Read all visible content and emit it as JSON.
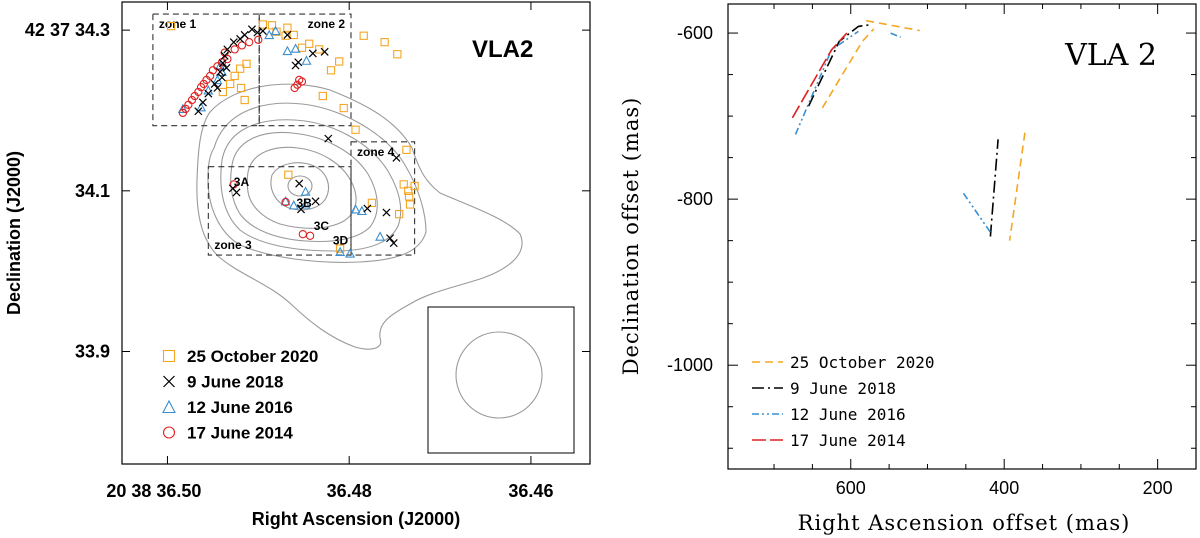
{
  "chart_data": [
    {
      "type": "scatter",
      "title": "VLA2",
      "xlabel": "Right Ascension (J2000)",
      "ylabel": "Declination (J2000)",
      "x_ticks": [
        {
          "value": 36.5,
          "label": "20 38 36.50"
        },
        {
          "value": 36.48,
          "label": "36.48"
        },
        {
          "value": 36.46,
          "label": "36.46"
        }
      ],
      "y_ticks": [
        {
          "value": 34.3,
          "label": "42 37 34.3"
        },
        {
          "value": 34.1,
          "label": "34.1"
        },
        {
          "value": 33.9,
          "label": "33.9"
        }
      ],
      "xlim": [
        36.505,
        36.4535
      ],
      "ylim": [
        33.76,
        34.335
      ],
      "zones": [
        {
          "name": "zone 1",
          "ra": [
            36.5016,
            36.4899
          ],
          "dec": [
            34.181,
            34.32
          ]
        },
        {
          "name": "zone 2",
          "ra": [
            36.4899,
            36.4798
          ],
          "dec": [
            34.181,
            34.32
          ]
        },
        {
          "name": "zone 3",
          "ra": [
            36.4955,
            36.4798
          ],
          "dec": [
            34.02,
            34.13
          ]
        },
        {
          "name": "zone 4",
          "ra": [
            36.4798,
            36.4728
          ],
          "dec": [
            34.02,
            34.161
          ]
        }
      ],
      "sources": [
        {
          "name": "3A",
          "ra": 36.4927,
          "dec": 34.106
        },
        {
          "name": "3B",
          "ra": 36.4858,
          "dec": 34.08
        },
        {
          "name": "3C",
          "ra": 36.4839,
          "dec": 34.051
        },
        {
          "name": "3D",
          "ra": 36.4818,
          "dec": 34.033
        }
      ],
      "series": [
        {
          "name": "25 October 2020",
          "marker": "square",
          "color": "#f5a623",
          "points": [
            [
              36.4996,
              34.305
            ],
            [
              36.4895,
              34.307
            ],
            [
              36.4885,
              34.306
            ],
            [
              36.4868,
              34.303
            ],
            [
              36.488,
              34.298
            ],
            [
              36.487,
              34.293
            ],
            [
              36.4861,
              34.294
            ],
            [
              36.4844,
              34.283
            ],
            [
              36.4852,
              34.278
            ],
            [
              36.4833,
              34.276
            ],
            [
              36.4811,
              34.261
            ],
            [
              36.4784,
              34.293
            ],
            [
              36.4761,
              34.285
            ],
            [
              36.4747,
              34.27
            ],
            [
              36.482,
              34.25
            ],
            [
              36.4913,
              34.258
            ],
            [
              36.492,
              34.252
            ],
            [
              36.4926,
              34.243
            ],
            [
              36.4931,
              34.233
            ],
            [
              36.4919,
              34.228
            ],
            [
              36.4939,
              34.223
            ],
            [
              36.4915,
              34.213
            ],
            [
              36.4829,
              34.218
            ],
            [
              36.4806,
              34.203
            ],
            [
              36.4793,
              34.176
            ],
            [
              36.4737,
              34.151
            ],
            [
              36.474,
              34.108
            ],
            [
              36.4735,
              34.1
            ],
            [
              36.4734,
              34.093
            ],
            [
              36.4728,
              34.106
            ],
            [
              36.4733,
              34.083
            ],
            [
              36.4775,
              34.085
            ],
            [
              36.4867,
              34.12
            ],
            [
              36.481,
              34.028
            ],
            [
              36.4745,
              34.071
            ]
          ]
        },
        {
          "name": "9 June 2018",
          "marker": "cross",
          "color": "#000000",
          "points": [
            [
              36.4895,
              34.299
            ],
            [
              36.4907,
              34.301
            ],
            [
              36.4901,
              34.297
            ],
            [
              36.4915,
              34.294
            ],
            [
              36.492,
              34.289
            ],
            [
              36.4927,
              34.285
            ],
            [
              36.4934,
              34.276
            ],
            [
              36.4937,
              34.268
            ],
            [
              36.4939,
              34.259
            ],
            [
              36.4935,
              34.253
            ],
            [
              36.4942,
              34.248
            ],
            [
              36.494,
              34.241
            ],
            [
              36.4948,
              34.233
            ],
            [
              36.4945,
              34.228
            ],
            [
              36.4955,
              34.221
            ],
            [
              36.4966,
              34.199
            ],
            [
              36.4961,
              34.21
            ],
            [
              36.4868,
              34.294
            ],
            [
              36.4856,
              34.26
            ],
            [
              36.4859,
              34.256
            ],
            [
              36.4827,
              34.273
            ],
            [
              36.484,
              34.271
            ],
            [
              36.4823,
              34.165
            ],
            [
              36.4855,
              34.109
            ],
            [
              36.4837,
              34.087
            ],
            [
              36.4853,
              34.077
            ],
            [
              36.4928,
              34.103
            ],
            [
              36.4924,
              34.098
            ],
            [
              36.4748,
              34.141
            ],
            [
              36.478,
              34.078
            ],
            [
              36.4759,
              34.073
            ],
            [
              36.4755,
              34.041
            ],
            [
              36.4751,
              34.035
            ]
          ]
        },
        {
          "name": "12 June 2016",
          "marker": "triangle",
          "color": "#3a8fd0",
          "points": [
            [
              36.4983,
              34.202
            ],
            [
              36.4963,
              34.204
            ],
            [
              36.4955,
              34.225
            ],
            [
              36.4945,
              34.238
            ],
            [
              36.494,
              34.248
            ],
            [
              36.4942,
              34.256
            ],
            [
              36.4888,
              34.294
            ],
            [
              36.4881,
              34.299
            ],
            [
              36.4859,
              34.277
            ],
            [
              36.4868,
              34.274
            ],
            [
              36.4847,
              34.262
            ],
            [
              36.487,
              34.087
            ],
            [
              36.4861,
              34.082
            ],
            [
              36.4848,
              34.083
            ],
            [
              36.4848,
              34.099
            ],
            [
              36.4793,
              34.077
            ],
            [
              36.4786,
              34.075
            ],
            [
              36.4766,
              34.043
            ],
            [
              36.481,
              34.024
            ],
            [
              36.4799,
              34.022
            ]
          ]
        },
        {
          "name": "17 June 2014",
          "marker": "circle",
          "color": "#e02020",
          "points": [
            [
              36.4934,
              34.264
            ],
            [
              36.494,
              34.26
            ],
            [
              36.4945,
              34.255
            ],
            [
              36.495,
              34.25
            ],
            [
              36.4953,
              34.243
            ],
            [
              36.4957,
              34.238
            ],
            [
              36.496,
              34.233
            ],
            [
              36.4963,
              34.229
            ],
            [
              36.4966,
              34.223
            ],
            [
              36.497,
              34.218
            ],
            [
              36.4973,
              34.213
            ],
            [
              36.4977,
              34.207
            ],
            [
              36.498,
              34.202
            ],
            [
              36.4983,
              34.197
            ],
            [
              36.4937,
              34.272
            ],
            [
              36.4926,
              34.276
            ],
            [
              36.4918,
              34.281
            ],
            [
              36.491,
              34.285
            ],
            [
              36.49,
              34.288
            ],
            [
              36.4855,
              34.238
            ],
            [
              36.4857,
              34.232
            ],
            [
              36.486,
              34.228
            ],
            [
              36.4852,
              34.236
            ],
            [
              36.4927,
              34.108
            ],
            [
              36.487,
              34.086
            ],
            [
              36.4851,
              34.046
            ],
            [
              36.4843,
              34.044
            ]
          ]
        }
      ]
    },
    {
      "type": "line",
      "title": "VLA 2",
      "xlabel": "Right Ascension offset (mas)",
      "ylabel": "Declination offset (mas)",
      "xlim": [
        760,
        150
      ],
      "ylim": [
        -1125,
        -565
      ],
      "x_ticks": [
        600,
        400,
        200
      ],
      "y_ticks": [
        -600,
        -800,
        -1000
      ],
      "series": [
        {
          "name": "25 October 2020",
          "color": "#f5a623",
          "dash": "8 5",
          "segments": [
            [
              [
                637,
                -690
              ],
              [
                585,
                -610
              ],
              [
                570,
                -595
              ]
            ],
            [
              [
                580,
                -585
              ],
              [
                510,
                -597
              ]
            ],
            [
              [
                373,
                -720
              ],
              [
                393,
                -850
              ]
            ]
          ]
        },
        {
          "name": "9 June 2018",
          "color": "#000000",
          "dash": "12 4 2 4",
          "segments": [
            [
              [
                655,
                -688
              ],
              [
                615,
                -610
              ],
              [
                590,
                -592
              ],
              [
                575,
                -590
              ]
            ],
            [
              [
                418,
                -845
              ],
              [
                408,
                -728
              ]
            ]
          ]
        },
        {
          "name": "12 June 2016",
          "color": "#3a8fd0",
          "dash": "7 3 2 3 2 3",
          "segments": [
            [
              [
                672,
                -722
              ],
              [
                625,
                -620
              ],
              [
                590,
                -598
              ]
            ],
            [
              [
                548,
                -600
              ],
              [
                535,
                -605
              ]
            ],
            [
              [
                453,
                -793
              ],
              [
                418,
                -840
              ]
            ]
          ]
        },
        {
          "name": "17 June 2014",
          "color": "#e02020",
          "dash": "14 4",
          "segments": [
            [
              [
                676,
                -702
              ],
              [
                625,
                -620
              ],
              [
                605,
                -600
              ]
            ]
          ]
        }
      ]
    }
  ]
}
